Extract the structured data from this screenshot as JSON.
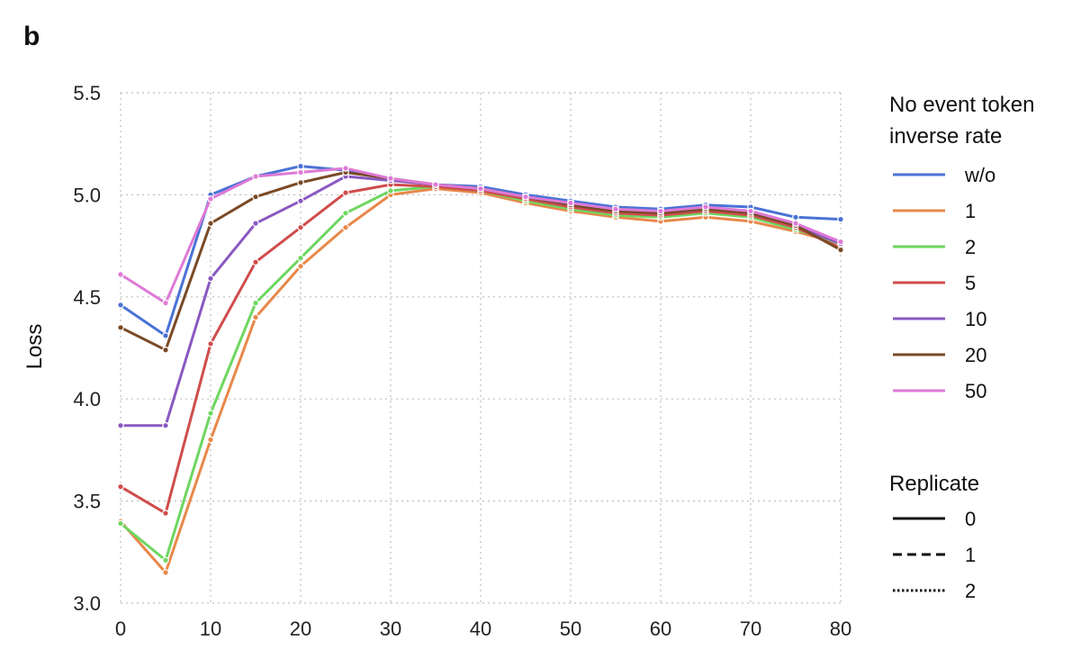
{
  "panel_label": "b",
  "chart_data": {
    "type": "line",
    "ylabel": "Loss",
    "xlabel": "",
    "xlim": [
      0,
      80
    ],
    "ylim": [
      3.0,
      5.5
    ],
    "xticks": [
      "0",
      "10",
      "20",
      "30",
      "40",
      "50",
      "60",
      "70",
      "80"
    ],
    "yticks": [
      "3.0",
      "3.5",
      "4.0",
      "4.5",
      "5.0",
      "5.5"
    ],
    "grid": true,
    "legend_position": "right",
    "legend_title": [
      "No event token",
      "inverse rate"
    ],
    "replicate_title": "Replicate",
    "replicates": [
      {
        "name": "0",
        "style": "solid"
      },
      {
        "name": "1",
        "style": "dashed"
      },
      {
        "name": "2",
        "style": "dotted"
      }
    ],
    "x": [
      0,
      5,
      10,
      15,
      20,
      25,
      30,
      35,
      40,
      45,
      50,
      55,
      60,
      65,
      70,
      75,
      80
    ],
    "series": [
      {
        "name": "w/o",
        "color": "#4a72d6",
        "values": [
          4.46,
          4.31,
          5.0,
          5.09,
          5.14,
          5.12,
          5.08,
          5.05,
          5.04,
          5.0,
          4.97,
          4.94,
          4.93,
          4.95,
          4.94,
          4.89,
          4.88
        ]
      },
      {
        "name": "1",
        "color": "#e8884a",
        "values": [
          3.4,
          3.15,
          3.8,
          4.4,
          4.65,
          4.84,
          5.0,
          5.03,
          5.01,
          4.96,
          4.92,
          4.89,
          4.87,
          4.89,
          4.87,
          4.82,
          4.76
        ]
      },
      {
        "name": "2",
        "color": "#6ed660",
        "values": [
          3.39,
          3.21,
          3.93,
          4.47,
          4.69,
          4.91,
          5.02,
          5.04,
          5.02,
          4.97,
          4.93,
          4.9,
          4.89,
          4.91,
          4.89,
          4.83,
          4.76
        ]
      },
      {
        "name": "5",
        "color": "#d04c4c",
        "values": [
          3.57,
          3.44,
          4.27,
          4.67,
          4.84,
          5.01,
          5.05,
          5.04,
          5.02,
          4.98,
          4.94,
          4.91,
          4.9,
          4.92,
          4.9,
          4.84,
          4.74
        ]
      },
      {
        "name": "10",
        "color": "#8a58c0",
        "values": [
          3.87,
          3.87,
          4.59,
          4.86,
          4.97,
          5.09,
          5.07,
          5.05,
          5.03,
          4.99,
          4.95,
          4.92,
          4.91,
          4.93,
          4.91,
          4.85,
          4.76
        ]
      },
      {
        "name": "20",
        "color": "#7a4a26",
        "values": [
          4.35,
          4.24,
          4.86,
          4.99,
          5.06,
          5.11,
          5.08,
          5.05,
          5.03,
          4.99,
          4.95,
          4.92,
          4.91,
          4.93,
          4.91,
          4.85,
          4.73
        ]
      },
      {
        "name": "50",
        "color": "#dd7ad6",
        "values": [
          4.61,
          4.47,
          4.98,
          5.09,
          5.11,
          5.13,
          5.08,
          5.05,
          5.03,
          4.99,
          4.96,
          4.93,
          4.92,
          4.94,
          4.92,
          4.86,
          4.77
        ]
      }
    ]
  }
}
